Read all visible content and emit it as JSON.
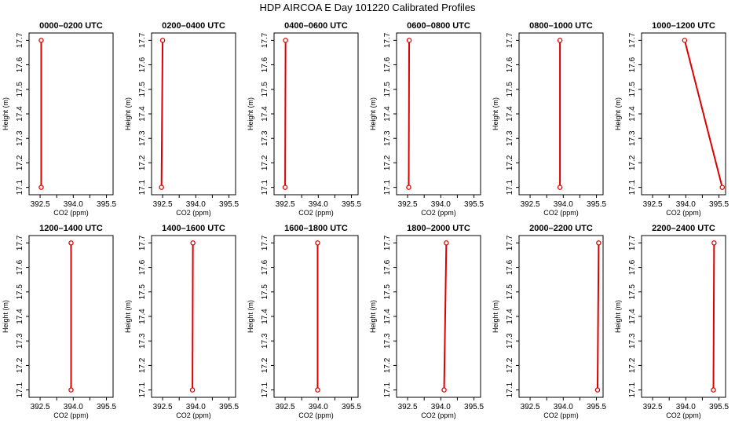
{
  "title": "HDP AIRCOA E  Day 101220  Calibrated Profiles",
  "colors": {
    "line": "#dd0000",
    "marker": "#dd0000",
    "axis": "#000000"
  },
  "chart_data": {
    "type": "line",
    "xlabel": "CO2 (ppm)",
    "ylabel": "Height (m)",
    "xlim": [
      392.0,
      395.8
    ],
    "ylim": [
      17.07,
      17.73
    ],
    "xticks": [
      392.5,
      394.0,
      395.5
    ],
    "xtick_labels": [
      "392.5",
      "394.0",
      "395.5"
    ],
    "xticks_unlabeled": [
      393.25,
      394.75
    ],
    "yticks": [
      17.1,
      17.2,
      17.3,
      17.4,
      17.5,
      17.6,
      17.7
    ],
    "ytick_labels": [
      "17.1",
      "17.2",
      "17.3",
      "17.4",
      "17.5",
      "17.6",
      "17.7"
    ],
    "grid": false,
    "panels": [
      {
        "title": "0000–0200 UTC",
        "points": [
          {
            "x": 392.55,
            "y": 17.1
          },
          {
            "x": 392.55,
            "y": 17.7
          }
        ]
      },
      {
        "title": "0200–0400 UTC",
        "points": [
          {
            "x": 392.45,
            "y": 17.1
          },
          {
            "x": 392.5,
            "y": 17.7
          }
        ]
      },
      {
        "title": "0400–0600 UTC",
        "points": [
          {
            "x": 392.5,
            "y": 17.1
          },
          {
            "x": 392.52,
            "y": 17.7
          }
        ]
      },
      {
        "title": "0600–0800 UTC",
        "points": [
          {
            "x": 392.55,
            "y": 17.1
          },
          {
            "x": 392.57,
            "y": 17.7
          }
        ]
      },
      {
        "title": "0800–1000 UTC",
        "points": [
          {
            "x": 393.85,
            "y": 17.1
          },
          {
            "x": 393.85,
            "y": 17.7
          }
        ]
      },
      {
        "title": "1000–1200 UTC",
        "points": [
          {
            "x": 395.65,
            "y": 17.1
          },
          {
            "x": 393.95,
            "y": 17.7
          }
        ]
      },
      {
        "title": "1200–1400 UTC",
        "points": [
          {
            "x": 393.9,
            "y": 17.1
          },
          {
            "x": 393.9,
            "y": 17.7
          }
        ]
      },
      {
        "title": "1400–1600 UTC",
        "points": [
          {
            "x": 393.85,
            "y": 17.1
          },
          {
            "x": 393.87,
            "y": 17.7
          }
        ]
      },
      {
        "title": "1600–1800 UTC",
        "points": [
          {
            "x": 393.97,
            "y": 17.1
          },
          {
            "x": 393.97,
            "y": 17.7
          }
        ]
      },
      {
        "title": "1800–2000 UTC",
        "points": [
          {
            "x": 394.15,
            "y": 17.1
          },
          {
            "x": 394.25,
            "y": 17.7
          }
        ]
      },
      {
        "title": "2000–2200 UTC",
        "points": [
          {
            "x": 395.55,
            "y": 17.1
          },
          {
            "x": 395.6,
            "y": 17.7
          }
        ]
      },
      {
        "title": "2200–2400 UTC",
        "points": [
          {
            "x": 395.25,
            "y": 17.1
          },
          {
            "x": 395.28,
            "y": 17.7
          }
        ]
      }
    ]
  }
}
